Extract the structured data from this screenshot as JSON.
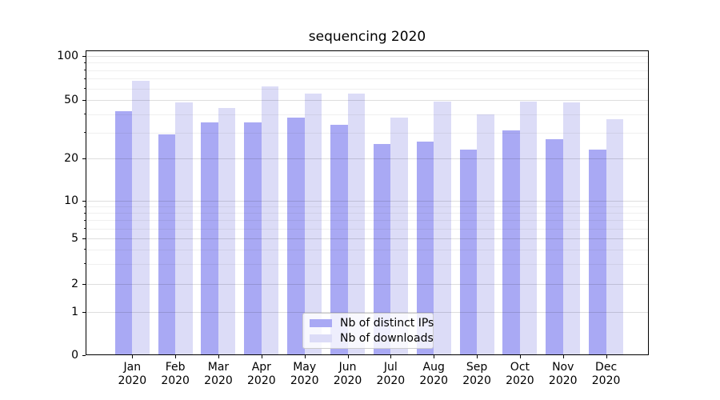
{
  "title": "sequencing 2020",
  "chart_data": {
    "type": "bar",
    "title": "sequencing 2020",
    "categories": [
      "Jan",
      "Feb",
      "Mar",
      "Apr",
      "May",
      "Jun",
      "Jul",
      "Aug",
      "Sep",
      "Oct",
      "Nov",
      "Dec"
    ],
    "category_year": "2020",
    "xlabel": "",
    "ylabel": "",
    "series": [
      {
        "name": "Nb of distinct IPs",
        "color": "#a9a9f4",
        "values": [
          42,
          29,
          35,
          35,
          38,
          34,
          25,
          26,
          23,
          31,
          27,
          23
        ]
      },
      {
        "name": "Nb of downloads",
        "color": "#dcdcf7",
        "values": [
          68,
          48,
          44,
          62,
          55,
          55,
          38,
          49,
          40,
          49,
          48,
          37
        ]
      }
    ],
    "yscale": "symlog",
    "yticks": [
      0,
      1,
      2,
      5,
      10,
      20,
      50,
      100
    ],
    "yticks_minor": [
      3,
      4,
      6,
      7,
      8,
      9,
      30,
      40,
      60,
      70,
      80,
      90
    ],
    "ylim": [
      0,
      109
    ],
    "grid": true,
    "grid_on_top_of_bars": true,
    "legend_position": "lower center",
    "colors": {
      "axes": "#000000",
      "grid_major": "#dddddd",
      "grid_minor": "#efefef",
      "legend_border": "#cccccc"
    }
  }
}
